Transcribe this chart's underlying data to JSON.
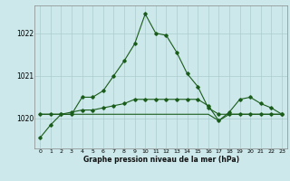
{
  "xlabel": "Graphe pression niveau de la mer (hPa)",
  "background_color": "#cce8ea",
  "grid_color": "#aacccc",
  "line_color": "#1a5c1a",
  "ylim": [
    1019.3,
    1022.65
  ],
  "yticks": [
    1020,
    1021,
    1022
  ],
  "xlim": [
    -0.5,
    23.5
  ],
  "xticks": [
    0,
    1,
    2,
    3,
    4,
    5,
    6,
    7,
    8,
    9,
    10,
    11,
    12,
    13,
    14,
    15,
    16,
    17,
    18,
    19,
    20,
    21,
    22,
    23
  ],
  "series1": [
    1019.55,
    1019.85,
    1020.1,
    1020.1,
    1020.5,
    1020.5,
    1020.65,
    1021.0,
    1021.35,
    1021.75,
    1022.45,
    1022.0,
    1021.95,
    1021.55,
    1021.05,
    1020.75,
    1020.25,
    1020.1,
    1020.1,
    1020.1,
    1020.1,
    1020.1,
    1020.1,
    1020.1
  ],
  "series2": [
    1020.1,
    1020.1,
    1020.1,
    1020.15,
    1020.2,
    1020.2,
    1020.25,
    1020.3,
    1020.35,
    1020.45,
    1020.45,
    1020.45,
    1020.45,
    1020.45,
    1020.45,
    1020.45,
    1020.3,
    1019.95,
    1020.15,
    1020.45,
    1020.5,
    1020.35,
    1020.25,
    1020.1
  ],
  "series3": [
    1020.1,
    1020.1,
    1020.1,
    1020.1,
    1020.1,
    1020.1,
    1020.1,
    1020.1,
    1020.1,
    1020.1,
    1020.1,
    1020.1,
    1020.1,
    1020.1,
    1020.1,
    1020.1,
    1020.1,
    1019.95,
    1020.1,
    1020.1,
    1020.1,
    1020.1,
    1020.1,
    1020.1
  ],
  "marker_size": 1.8,
  "line_width": 0.8
}
